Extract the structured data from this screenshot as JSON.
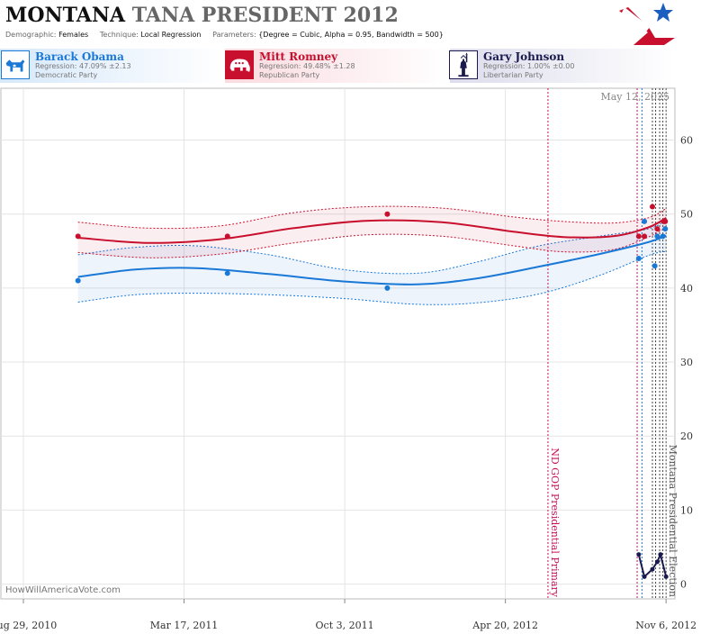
{
  "header": {
    "title_state": "MONTANA",
    "title_rest": "TANA PRESIDENT 2012",
    "demographic_label": "Demographic:",
    "demographic_value": "Females",
    "technique_label": "Technique:",
    "technique_value": "Local Regression",
    "parameters_label": "Parameters:",
    "parameters_value": "{Degree = Cubic, Alpha = 0.95, Bandwidth = 500}"
  },
  "candidates": [
    {
      "name": "Barack Obama",
      "regression": "Regression: 47.09% ±2.13",
      "party": "Democratic Party",
      "color": "#1a78d6"
    },
    {
      "name": "Mitt Romney",
      "regression": "Regression: 49.48% ±1.28",
      "party": "Republican Party",
      "color": "#c8102e"
    },
    {
      "name": "Gary Johnson",
      "regression": "Regression: 1.00% ±0.00",
      "party": "Libertarian Party",
      "color": "#1a1a4e"
    }
  ],
  "watermark": "HowWillAmericaVote.com",
  "date_stamp": "May 12, 2025",
  "chart_data": {
    "type": "line",
    "x_axis": {
      "type": "date",
      "range": [
        "2010-08-01",
        "2012-11-17"
      ],
      "tick_labels": [
        "Aug 29, 2010",
        "Mar 17, 2011",
        "Oct 3, 2011",
        "Apr 20, 2012",
        "Nov 6, 2012"
      ],
      "tick_dates": [
        "2010-08-29",
        "2011-03-17",
        "2011-10-03",
        "2012-04-20",
        "2012-11-06"
      ]
    },
    "y_axis": {
      "range": [
        -2,
        67
      ],
      "ticks": [
        0,
        10,
        20,
        30,
        40,
        50,
        60
      ],
      "position": "right"
    },
    "grid": true,
    "events": [
      {
        "label": "ND GOP Presidential Primary",
        "date": "2012-06-12",
        "color": "#c8105a"
      },
      {
        "label": "Montana Presidential Election",
        "date": "2012-11-06",
        "color": "#555555"
      }
    ],
    "extra_vlines": [
      {
        "date": "2012-10-01",
        "color": "#c8105a"
      },
      {
        "date": "2012-10-07",
        "color": "#1a78d6"
      },
      {
        "date": "2012-10-20",
        "color": "#444444"
      },
      {
        "date": "2012-10-24",
        "color": "#444444"
      },
      {
        "date": "2012-10-29",
        "color": "#444444"
      },
      {
        "date": "2012-11-02",
        "color": "#444444"
      }
    ],
    "series": [
      {
        "name": "Barack Obama",
        "color": "#1a78d6",
        "points": [
          {
            "x": "2010-11-05",
            "y": 41
          },
          {
            "x": "2011-05-10",
            "y": 42
          },
          {
            "x": "2011-11-25",
            "y": 40
          },
          {
            "x": "2012-10-03",
            "y": 44
          },
          {
            "x": "2012-10-10",
            "y": 49
          },
          {
            "x": "2012-10-23",
            "y": 43
          },
          {
            "x": "2012-10-26",
            "y": 47
          },
          {
            "x": "2012-11-02",
            "y": 47
          },
          {
            "x": "2012-11-05",
            "y": 48
          }
        ],
        "trend": [
          {
            "x": "2010-11-05",
            "y": 41.5
          },
          {
            "x": "2011-01-15",
            "y": 42.5
          },
          {
            "x": "2011-04-01",
            "y": 42.7
          },
          {
            "x": "2011-07-01",
            "y": 41.9
          },
          {
            "x": "2011-10-01",
            "y": 40.9
          },
          {
            "x": "2012-01-01",
            "y": 40.5
          },
          {
            "x": "2012-03-15",
            "y": 41.3
          },
          {
            "x": "2012-06-01",
            "y": 42.9
          },
          {
            "x": "2012-08-15",
            "y": 44.6
          },
          {
            "x": "2012-10-15",
            "y": 46.2
          },
          {
            "x": "2012-11-06",
            "y": 47.09
          }
        ],
        "band_upper": [
          {
            "x": "2010-11-05",
            "y": 44.5
          },
          {
            "x": "2011-01-15",
            "y": 45.5
          },
          {
            "x": "2011-04-01",
            "y": 45.7
          },
          {
            "x": "2011-07-01",
            "y": 44.5
          },
          {
            "x": "2011-10-01",
            "y": 42.5
          },
          {
            "x": "2012-01-01",
            "y": 42.0
          },
          {
            "x": "2012-03-15",
            "y": 43.5
          },
          {
            "x": "2012-06-01",
            "y": 45.7
          },
          {
            "x": "2012-08-15",
            "y": 47.0
          },
          {
            "x": "2012-10-15",
            "y": 48.0
          },
          {
            "x": "2012-11-06",
            "y": 49.22
          }
        ],
        "band_lower": [
          {
            "x": "2010-11-05",
            "y": 38.1
          },
          {
            "x": "2011-01-15",
            "y": 39.1
          },
          {
            "x": "2011-04-01",
            "y": 39.3
          },
          {
            "x": "2011-07-01",
            "y": 39.1
          },
          {
            "x": "2011-10-01",
            "y": 38.6
          },
          {
            "x": "2012-01-01",
            "y": 37.8
          },
          {
            "x": "2012-03-15",
            "y": 38.0
          },
          {
            "x": "2012-06-01",
            "y": 39.2
          },
          {
            "x": "2012-08-15",
            "y": 41.7
          },
          {
            "x": "2012-10-15",
            "y": 44.4
          },
          {
            "x": "2012-11-06",
            "y": 44.96
          }
        ]
      },
      {
        "name": "Mitt Romney",
        "color": "#c8102e",
        "points": [
          {
            "x": "2010-11-05",
            "y": 47
          },
          {
            "x": "2011-05-10",
            "y": 47
          },
          {
            "x": "2011-11-25",
            "y": 50
          },
          {
            "x": "2012-10-03",
            "y": 47
          },
          {
            "x": "2012-10-10",
            "y": 47
          },
          {
            "x": "2012-10-20",
            "y": 51
          },
          {
            "x": "2012-10-26",
            "y": 48
          },
          {
            "x": "2012-11-03",
            "y": 49
          },
          {
            "x": "2012-11-05",
            "y": 49
          }
        ],
        "trend": [
          {
            "x": "2010-11-05",
            "y": 46.8
          },
          {
            "x": "2011-02-01",
            "y": 46.1
          },
          {
            "x": "2011-05-01",
            "y": 46.6
          },
          {
            "x": "2011-08-01",
            "y": 48.1
          },
          {
            "x": "2011-11-01",
            "y": 49.1
          },
          {
            "x": "2012-02-01",
            "y": 48.9
          },
          {
            "x": "2012-05-01",
            "y": 47.6
          },
          {
            "x": "2012-07-01",
            "y": 46.9
          },
          {
            "x": "2012-09-01",
            "y": 47.0
          },
          {
            "x": "2012-10-15",
            "y": 48.2
          },
          {
            "x": "2012-11-06",
            "y": 49.48
          }
        ],
        "band_upper": [
          {
            "x": "2010-11-05",
            "y": 48.9
          },
          {
            "x": "2011-02-01",
            "y": 48.1
          },
          {
            "x": "2011-05-01",
            "y": 48.4
          },
          {
            "x": "2011-08-01",
            "y": 50.2
          },
          {
            "x": "2011-11-01",
            "y": 51.0
          },
          {
            "x": "2012-02-01",
            "y": 50.8
          },
          {
            "x": "2012-05-01",
            "y": 49.6
          },
          {
            "x": "2012-07-01",
            "y": 49.0
          },
          {
            "x": "2012-09-01",
            "y": 48.8
          },
          {
            "x": "2012-10-15",
            "y": 49.5
          },
          {
            "x": "2012-11-06",
            "y": 50.76
          }
        ],
        "band_lower": [
          {
            "x": "2010-11-05",
            "y": 44.8
          },
          {
            "x": "2011-02-01",
            "y": 44.1
          },
          {
            "x": "2011-05-01",
            "y": 44.6
          },
          {
            "x": "2011-08-01",
            "y": 46.1
          },
          {
            "x": "2011-11-01",
            "y": 47.2
          },
          {
            "x": "2012-02-01",
            "y": 47.0
          },
          {
            "x": "2012-05-01",
            "y": 45.7
          },
          {
            "x": "2012-07-01",
            "y": 44.9
          },
          {
            "x": "2012-09-01",
            "y": 45.2
          },
          {
            "x": "2012-10-15",
            "y": 46.9
          },
          {
            "x": "2012-11-06",
            "y": 48.2
          }
        ]
      },
      {
        "name": "Gary Johnson",
        "color": "#1a1a4e",
        "points": [],
        "trend": [
          {
            "x": "2012-10-03",
            "y": 4
          },
          {
            "x": "2012-10-10",
            "y": 1
          },
          {
            "x": "2012-10-20",
            "y": 2
          },
          {
            "x": "2012-10-26",
            "y": 3
          },
          {
            "x": "2012-10-30",
            "y": 4
          },
          {
            "x": "2012-11-06",
            "y": 1
          }
        ],
        "band_upper": [],
        "band_lower": []
      }
    ]
  }
}
